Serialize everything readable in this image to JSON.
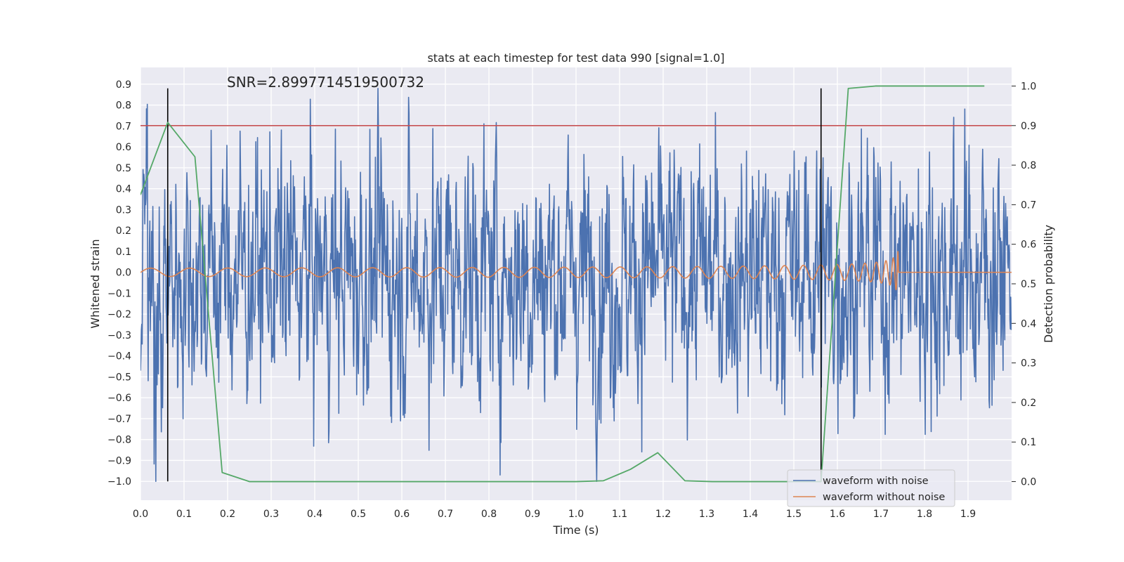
{
  "chart_data": {
    "type": "line",
    "title": "stats at each timestep for test data 990 [signal=1.0]",
    "xlabel": "Time (s)",
    "ylabel": "Whitened strain",
    "y2label": "Detection probability",
    "annotation": "SNR=2.8997714519500732",
    "xlim": [
      0,
      2.0
    ],
    "ylim": [
      -1.09,
      0.98
    ],
    "y2lim": [
      -0.047,
      1.047
    ],
    "grid": true,
    "legend": {
      "loc": "lower-right"
    },
    "x_ticks": [
      0.0,
      0.1,
      0.2,
      0.3,
      0.4,
      0.5,
      0.6,
      0.7,
      0.8,
      0.9,
      1.0,
      1.1,
      1.2,
      1.3,
      1.4,
      1.5,
      1.6,
      1.7,
      1.8,
      1.9
    ],
    "x_tick_labels": [
      "0.0",
      "0.1",
      "0.2",
      "0.3",
      "0.4",
      "0.5",
      "0.6",
      "0.7",
      "0.8",
      "0.9",
      "1.0",
      "1.1",
      "1.2",
      "1.3",
      "1.4",
      "1.5",
      "1.6",
      "1.7",
      "1.8",
      "1.9"
    ],
    "y_ticks": [
      -1.0,
      -0.9,
      -0.8,
      -0.7,
      -0.6,
      -0.5,
      -0.4,
      -0.3,
      -0.2,
      -0.1,
      0.0,
      0.1,
      0.2,
      0.3,
      0.4,
      0.5,
      0.6,
      0.7,
      0.8,
      0.9
    ],
    "y_tick_labels": [
      "−1.0",
      "−0.9",
      "−0.8",
      "−0.7",
      "−0.6",
      "−0.5",
      "−0.4",
      "−0.3",
      "−0.2",
      "−0.1",
      "0.0",
      "0.1",
      "0.2",
      "0.3",
      "0.4",
      "0.5",
      "0.6",
      "0.7",
      "0.8",
      "0.9"
    ],
    "y2_ticks": [
      0.0,
      0.1,
      0.2,
      0.3,
      0.4,
      0.5,
      0.6,
      0.7,
      0.8,
      0.9,
      1.0
    ],
    "y2_tick_labels": [
      "0.0",
      "0.1",
      "0.2",
      "0.3",
      "0.4",
      "0.5",
      "0.6",
      "0.7",
      "0.8",
      "0.9",
      "1.0"
    ],
    "threshold": {
      "y2": 0.9,
      "color": "#c44e52"
    },
    "vlines": [
      {
        "x": 0.0625,
        "y": [
          -1.0,
          0.88
        ],
        "color": "#000000"
      },
      {
        "x": 1.5625,
        "y": [
          -1.0,
          0.88
        ],
        "color": "#000000"
      }
    ],
    "series": [
      {
        "name": "waveform with noise",
        "color": "#4c72b0",
        "axis": "left",
        "noise": {
          "x_start": 0.0,
          "x_end": 2.0,
          "amplitude_range": [
            -1.0,
            0.88
          ]
        }
      },
      {
        "name": "waveform without noise",
        "color": "#dd8452",
        "axis": "left",
        "chirp": {
          "x_start": 0.0,
          "x_end": 1.75,
          "merger_x": 1.74,
          "amplitude_start": 0.02,
          "amplitude_peak": 0.1
        }
      },
      {
        "name": "detection probability",
        "color": "#55a868",
        "axis": "right",
        "x": [
          0.0,
          0.0625,
          0.125,
          0.1875,
          0.25,
          0.3125,
          0.375,
          0.4375,
          0.5,
          0.5625,
          0.625,
          0.6875,
          0.75,
          0.8125,
          0.875,
          0.9375,
          1.0,
          1.0625,
          1.125,
          1.1875,
          1.25,
          1.3125,
          1.375,
          1.4375,
          1.5,
          1.5625,
          1.625,
          1.6875,
          1.75,
          1.8125,
          1.875,
          1.9375
        ],
        "values": [
          0.725,
          0.908,
          0.821,
          0.023,
          0.0,
          0.0,
          0.0,
          0.0,
          0.0,
          0.0,
          0.0,
          0.0,
          0.0,
          0.0,
          0.0,
          0.0,
          0.0,
          0.002,
          0.031,
          0.073,
          0.002,
          0.0,
          0.0,
          0.0,
          0.0,
          0.0,
          0.994,
          1.0,
          1.0,
          1.0,
          1.0,
          1.0
        ]
      }
    ]
  }
}
